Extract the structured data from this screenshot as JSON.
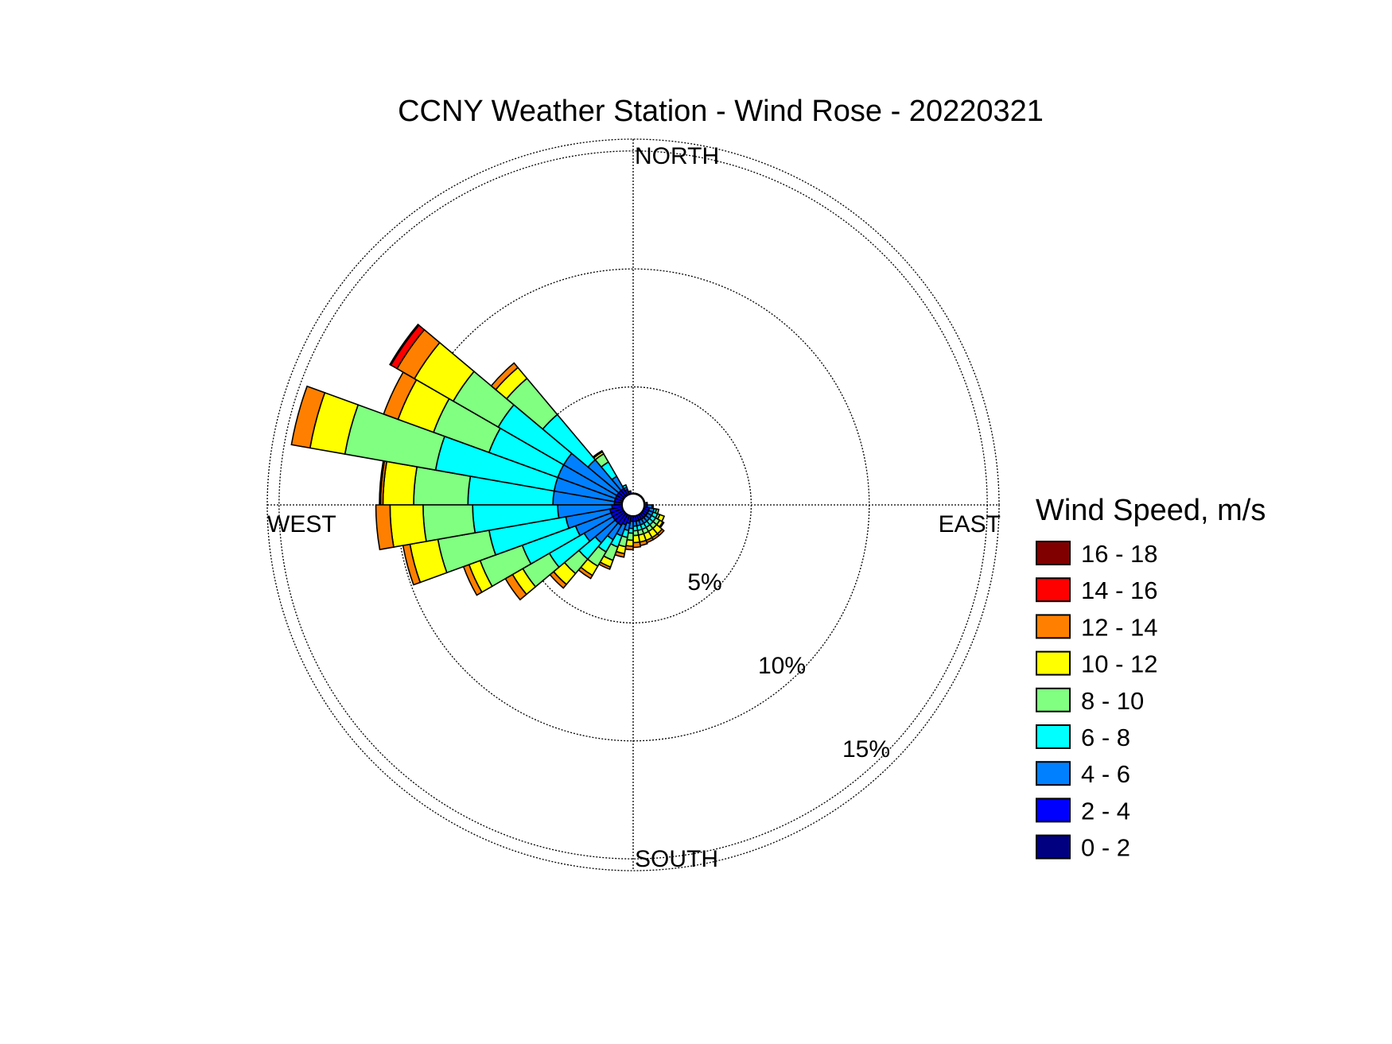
{
  "chart_data": {
    "type": "wind-rose",
    "title": "CCNY Weather Station - Wind Rose - 20220321",
    "direction_labels": {
      "north": "NORTH",
      "east": "EAST",
      "south": "SOUTH",
      "west": "WEST"
    },
    "radial_axis": {
      "unit": "%",
      "max": 15.5,
      "rings": [
        5,
        10,
        15
      ],
      "ring_labels": [
        "5%",
        "10%",
        "15%"
      ]
    },
    "legend": {
      "title": "Wind Speed, m/s",
      "bins": [
        {
          "label": "16 - 18",
          "color": "#800000"
        },
        {
          "label": "14 - 16",
          "color": "#ff0000"
        },
        {
          "label": "12 - 14",
          "color": "#ff8000"
        },
        {
          "label": "10 - 12",
          "color": "#ffff00"
        },
        {
          "label": "8 - 10",
          "color": "#80ff80"
        },
        {
          "label": "6 - 8",
          "color": "#00ffff"
        },
        {
          "label": "4 - 6",
          "color": "#0080ff"
        },
        {
          "label": "2 - 4",
          "color": "#0000ff"
        },
        {
          "label": "0 - 2",
          "color": "#000080"
        }
      ]
    },
    "speed_bins_low_to_high": [
      "0 - 2",
      "2 - 4",
      "4 - 6",
      "6 - 8",
      "8 - 10",
      "10 - 12",
      "12 - 14",
      "14 - 16",
      "16 - 18"
    ],
    "sector_width_deg": 10,
    "sectors": [
      {
        "direction_deg": 275,
        "cumulative_pct": [
          0.4,
          0.8,
          3.4,
          7.0,
          9.3,
          10.6,
          10.7,
          10.75,
          10.75
        ]
      },
      {
        "direction_deg": 285,
        "cumulative_pct": [
          0.4,
          0.8,
          3.4,
          8.5,
          12.4,
          13.9,
          14.7,
          14.7,
          14.7
        ]
      },
      {
        "direction_deg": 295,
        "cumulative_pct": [
          0.4,
          0.8,
          3.4,
          6.5,
          9.0,
          10.6,
          11.25,
          11.25,
          11.25
        ]
      },
      {
        "direction_deg": 305,
        "cumulative_pct": [
          0.4,
          0.8,
          3.4,
          6.6,
          8.8,
          10.7,
          11.55,
          11.85,
          11.9
        ]
      },
      {
        "direction_deg": 315,
        "cumulative_pct": [
          0.4,
          0.8,
          2.5,
          5.0,
          7.0,
          7.6,
          7.85,
          7.85,
          7.85
        ]
      },
      {
        "direction_deg": 325,
        "cumulative_pct": [
          0.4,
          0.8,
          1.4,
          2.1,
          2.5,
          2.6,
          2.65,
          2.65,
          2.65
        ]
      },
      {
        "direction_deg": 335,
        "cumulative_pct": [
          0.4,
          0.7,
          0.8,
          0.9,
          0.9,
          0.9,
          0.9,
          0.9,
          0.9
        ]
      },
      {
        "direction_deg": 345,
        "cumulative_pct": [
          0.4,
          0.6,
          0.6,
          0.6,
          0.6,
          0.6,
          0.6,
          0.6,
          0.6
        ]
      },
      {
        "direction_deg": 355,
        "cumulative_pct": [
          0.4,
          0.5,
          0.5,
          0.5,
          0.5,
          0.5,
          0.5,
          0.5,
          0.5
        ]
      },
      {
        "direction_deg": 5,
        "cumulative_pct": [
          0.4,
          0.5,
          0.5,
          0.5,
          0.5,
          0.5,
          0.5,
          0.5,
          0.5
        ]
      },
      {
        "direction_deg": 15,
        "cumulative_pct": [
          0.4,
          0.5,
          0.5,
          0.5,
          0.5,
          0.5,
          0.5,
          0.5,
          0.5
        ]
      },
      {
        "direction_deg": 25,
        "cumulative_pct": [
          0.4,
          0.5,
          0.5,
          0.5,
          0.5,
          0.5,
          0.5,
          0.5,
          0.5
        ]
      },
      {
        "direction_deg": 35,
        "cumulative_pct": [
          0.4,
          0.5,
          0.5,
          0.5,
          0.5,
          0.5,
          0.5,
          0.5,
          0.5
        ]
      },
      {
        "direction_deg": 45,
        "cumulative_pct": [
          0.4,
          0.5,
          0.5,
          0.5,
          0.5,
          0.5,
          0.5,
          0.5,
          0.5
        ]
      },
      {
        "direction_deg": 55,
        "cumulative_pct": [
          0.4,
          0.5,
          0.5,
          0.5,
          0.5,
          0.5,
          0.5,
          0.5,
          0.5
        ]
      },
      {
        "direction_deg": 65,
        "cumulative_pct": [
          0.4,
          0.5,
          0.5,
          0.5,
          0.5,
          0.5,
          0.5,
          0.5,
          0.5
        ]
      },
      {
        "direction_deg": 75,
        "cumulative_pct": [
          0.4,
          0.5,
          0.5,
          0.5,
          0.5,
          0.5,
          0.5,
          0.5,
          0.5
        ]
      },
      {
        "direction_deg": 85,
        "cumulative_pct": [
          0.4,
          0.6,
          0.6,
          0.6,
          0.6,
          0.6,
          0.6,
          0.6,
          0.6
        ]
      },
      {
        "direction_deg": 95,
        "cumulative_pct": [
          0.4,
          0.6,
          0.8,
          0.85,
          0.85,
          0.85,
          0.85,
          0.85,
          0.85
        ]
      },
      {
        "direction_deg": 105,
        "cumulative_pct": [
          0.4,
          0.7,
          0.9,
          1.0,
          1.1,
          1.1,
          1.1,
          1.1,
          1.1
        ]
      },
      {
        "direction_deg": 115,
        "cumulative_pct": [
          0.4,
          0.7,
          0.9,
          1.1,
          1.2,
          1.4,
          1.4,
          1.4,
          1.4
        ]
      },
      {
        "direction_deg": 125,
        "cumulative_pct": [
          0.4,
          0.7,
          0.9,
          1.1,
          1.3,
          1.45,
          1.5,
          1.5,
          1.5
        ]
      },
      {
        "direction_deg": 135,
        "cumulative_pct": [
          0.4,
          0.7,
          0.9,
          1.1,
          1.3,
          1.6,
          1.7,
          1.7,
          1.7
        ]
      },
      {
        "direction_deg": 145,
        "cumulative_pct": [
          0.4,
          0.7,
          0.9,
          1.1,
          1.3,
          1.6,
          1.7,
          1.7,
          1.7
        ]
      },
      {
        "direction_deg": 155,
        "cumulative_pct": [
          0.4,
          0.7,
          0.9,
          1.1,
          1.3,
          1.6,
          1.7,
          1.7,
          1.7
        ]
      },
      {
        "direction_deg": 165,
        "cumulative_pct": [
          0.4,
          0.7,
          0.9,
          1.1,
          1.3,
          1.6,
          1.75,
          1.75,
          1.75
        ]
      },
      {
        "direction_deg": 175,
        "cumulative_pct": [
          0.4,
          0.7,
          0.9,
          1.1,
          1.3,
          1.6,
          1.8,
          1.8,
          1.8
        ]
      },
      {
        "direction_deg": 185,
        "cumulative_pct": [
          0.4,
          0.7,
          1.0,
          1.2,
          1.5,
          1.75,
          1.9,
          1.9,
          1.9
        ]
      },
      {
        "direction_deg": 195,
        "cumulative_pct": [
          0.4,
          0.8,
          1.1,
          1.4,
          1.8,
          2.1,
          2.25,
          2.25,
          2.25
        ]
      },
      {
        "direction_deg": 205,
        "cumulative_pct": [
          0.4,
          0.9,
          1.4,
          1.9,
          2.5,
          2.8,
          2.9,
          2.9,
          2.9
        ]
      },
      {
        "direction_deg": 215,
        "cumulative_pct": [
          0.4,
          1.0,
          1.7,
          2.3,
          3.0,
          3.45,
          3.6,
          3.6,
          3.6
        ]
      },
      {
        "direction_deg": 225,
        "cumulative_pct": [
          0.4,
          1.0,
          2.1,
          3.0,
          3.8,
          4.4,
          4.6,
          4.6,
          4.6
        ]
      },
      {
        "direction_deg": 235,
        "cumulative_pct": [
          0.4,
          1.0,
          2.4,
          4.1,
          5.4,
          5.9,
          6.25,
          6.25,
          6.25
        ]
      },
      {
        "direction_deg": 245,
        "cumulative_pct": [
          0.4,
          1.0,
          2.6,
          5.0,
          6.9,
          7.4,
          7.65,
          7.65,
          7.65
        ]
      },
      {
        "direction_deg": 255,
        "cumulative_pct": [
          0.4,
          1.0,
          2.9,
          6.2,
          8.4,
          9.6,
          9.9,
          9.9,
          9.9
        ]
      },
      {
        "direction_deg": 265,
        "cumulative_pct": [
          0.4,
          0.9,
          3.2,
          6.8,
          8.9,
          10.3,
          10.9,
          10.9,
          10.9
        ]
      }
    ]
  }
}
